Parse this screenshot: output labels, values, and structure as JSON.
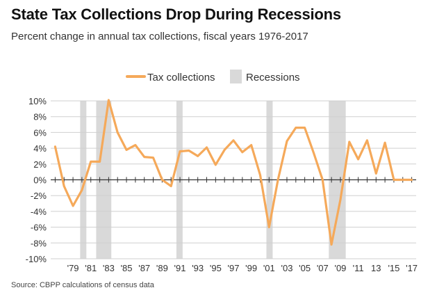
{
  "header": {
    "title": "State Tax Collections Drop During Recessions",
    "subtitle": "Percent change in annual tax collections, fiscal years 1976-2017"
  },
  "footer": {
    "source": "Source: CBPP calculations of census data"
  },
  "colors": {
    "line": "#f5a95a",
    "recession": "#d9d9d9",
    "grid": "#cfcfcf",
    "zero_axis": "#333333"
  },
  "chart_data": {
    "type": "line",
    "title": "State Tax Collections Drop During Recessions",
    "subtitle": "Percent change in annual tax collections, fiscal years 1976-2017",
    "xlabel": "",
    "ylabel": "",
    "ylim": [
      -10,
      10
    ],
    "xlim": [
      1976.5,
      2017.5
    ],
    "grid": true,
    "legend": {
      "placement": "top-center",
      "entries": [
        "Tax collections",
        "Recessions"
      ]
    },
    "y_ticks": [
      {
        "value": 10,
        "label": "10%"
      },
      {
        "value": 8,
        "label": "8%"
      },
      {
        "value": 6,
        "label": "6%"
      },
      {
        "value": 4,
        "label": "4%"
      },
      {
        "value": 2,
        "label": "2%"
      },
      {
        "value": 0,
        "label": "0%"
      },
      {
        "value": -2,
        "label": "-2%"
      },
      {
        "value": -4,
        "label": "-4%"
      },
      {
        "value": -6,
        "label": "-6%"
      },
      {
        "value": -8,
        "label": "-8%"
      },
      {
        "value": -10,
        "label": "-10%"
      }
    ],
    "x_ticks": [
      {
        "value": 1979,
        "label": "'79"
      },
      {
        "value": 1981,
        "label": "'81"
      },
      {
        "value": 1983,
        "label": "'83"
      },
      {
        "value": 1985,
        "label": "'85"
      },
      {
        "value": 1987,
        "label": "'87"
      },
      {
        "value": 1989,
        "label": "'89"
      },
      {
        "value": 1991,
        "label": "'91"
      },
      {
        "value": 1993,
        "label": "'93"
      },
      {
        "value": 1995,
        "label": "'95"
      },
      {
        "value": 1997,
        "label": "'97"
      },
      {
        "value": 1999,
        "label": "'99"
      },
      {
        "value": 2001,
        "label": "'01"
      },
      {
        "value": 2003,
        "label": "'03"
      },
      {
        "value": 2005,
        "label": "'05"
      },
      {
        "value": 2007,
        "label": "'07"
      },
      {
        "value": 2009,
        "label": "'09"
      },
      {
        "value": 2011,
        "label": "'11"
      },
      {
        "value": 2013,
        "label": "13"
      },
      {
        "value": 2015,
        "label": "'15"
      },
      {
        "value": 2017,
        "label": "'17"
      }
    ],
    "recessions": [
      {
        "start": 1979.8,
        "end": 1980.5
      },
      {
        "start": 1981.6,
        "end": 1983.3
      },
      {
        "start": 1990.6,
        "end": 1991.3
      },
      {
        "start": 2000.7,
        "end": 2001.4
      },
      {
        "start": 2007.7,
        "end": 2009.6
      }
    ],
    "series": [
      {
        "name": "Tax collections",
        "x": [
          1977,
          1978,
          1979,
          1980,
          1981,
          1982,
          1983,
          1984,
          1985,
          1986,
          1987,
          1988,
          1989,
          1990,
          1991,
          1992,
          1993,
          1994,
          1995,
          1996,
          1997,
          1998,
          1999,
          2000,
          2001,
          2002,
          2003,
          2004,
          2005,
          2006,
          2007,
          2008,
          2009,
          2010,
          2011,
          2012,
          2013,
          2014,
          2015,
          2016,
          2017
        ],
        "values": [
          4.2,
          -0.8,
          -3.3,
          -1.3,
          2.3,
          2.3,
          10.1,
          6.0,
          3.8,
          4.4,
          2.9,
          2.8,
          0.0,
          -0.8,
          3.6,
          3.7,
          3.0,
          4.1,
          1.9,
          3.8,
          5.0,
          3.5,
          4.4,
          0.6,
          -6.0,
          0.0,
          4.9,
          6.6,
          6.6,
          3.4,
          0.0,
          -8.2,
          -2.5,
          4.8,
          2.6,
          5.0,
          0.8,
          4.7,
          0.0,
          0.0,
          0.0
        ]
      }
    ]
  }
}
